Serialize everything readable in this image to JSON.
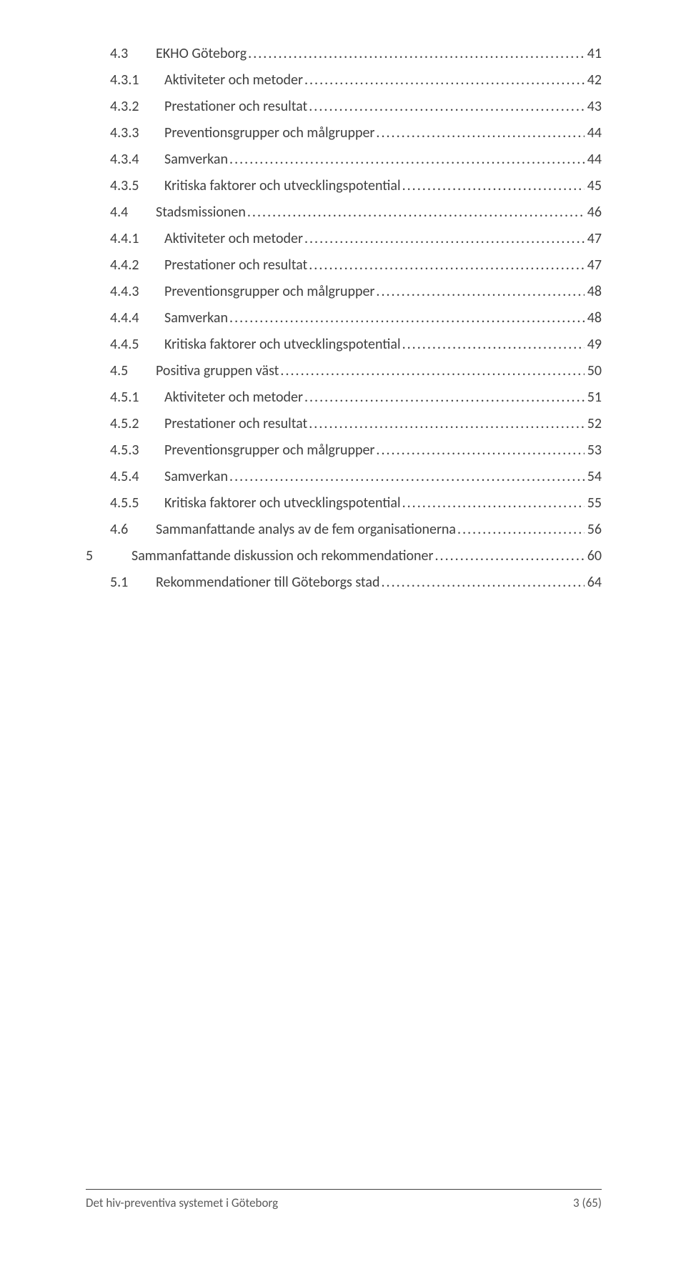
{
  "text_color": "#404040",
  "background_color": "#ffffff",
  "font_family": "Calibri",
  "toc": [
    {
      "level": 2,
      "num": "4.3",
      "title": "EKHO Göteborg",
      "page": "41"
    },
    {
      "level": 3,
      "num": "4.3.1",
      "title": "Aktiviteter och metoder",
      "page": "42"
    },
    {
      "level": 3,
      "num": "4.3.2",
      "title": "Prestationer och resultat",
      "page": "43"
    },
    {
      "level": 3,
      "num": "4.3.3",
      "title": "Preventionsgrupper och målgrupper",
      "page": "44"
    },
    {
      "level": 3,
      "num": "4.3.4",
      "title": "Samverkan",
      "page": "44"
    },
    {
      "level": 3,
      "num": "4.3.5",
      "title": "Kritiska faktorer och utvecklingspotential",
      "page": "45"
    },
    {
      "level": 2,
      "num": "4.4",
      "title": "Stadsmissionen",
      "page": "46"
    },
    {
      "level": 3,
      "num": "4.4.1",
      "title": "Aktiviteter och metoder",
      "page": "47"
    },
    {
      "level": 3,
      "num": "4.4.2",
      "title": "Prestationer och resultat",
      "page": "47"
    },
    {
      "level": 3,
      "num": "4.4.3",
      "title": "Preventionsgrupper och målgrupper",
      "page": "48"
    },
    {
      "level": 3,
      "num": "4.4.4",
      "title": "Samverkan",
      "page": "48"
    },
    {
      "level": 3,
      "num": "4.4.5",
      "title": "Kritiska faktorer och utvecklingspotential",
      "page": "49"
    },
    {
      "level": 2,
      "num": "4.5",
      "title": "Positiva gruppen väst",
      "page": "50"
    },
    {
      "level": 3,
      "num": "4.5.1",
      "title": "Aktiviteter och metoder",
      "page": "51"
    },
    {
      "level": 3,
      "num": "4.5.2",
      "title": "Prestationer och resultat",
      "page": "52"
    },
    {
      "level": 3,
      "num": "4.5.3",
      "title": "Preventionsgrupper och målgrupper",
      "page": "53"
    },
    {
      "level": 3,
      "num": "4.5.4",
      "title": "Samverkan",
      "page": "54"
    },
    {
      "level": 3,
      "num": "4.5.5",
      "title": "Kritiska faktorer och utvecklingspotential",
      "page": "55"
    },
    {
      "level": 2,
      "num": "4.6",
      "title": "Sammanfattande analys av de fem  organisationerna",
      "page": "56"
    },
    {
      "level": 1,
      "num": "5",
      "title": "Sammanfattande diskussion och rekommendationer",
      "page": "60"
    },
    {
      "level": 2,
      "num": "5.1",
      "title": "Rekommendationer till Göteborgs stad",
      "page": "64"
    }
  ],
  "footer": {
    "doc_title": "Det hiv-preventiva systemet i Göteborg",
    "page_label": "3 (65)"
  }
}
